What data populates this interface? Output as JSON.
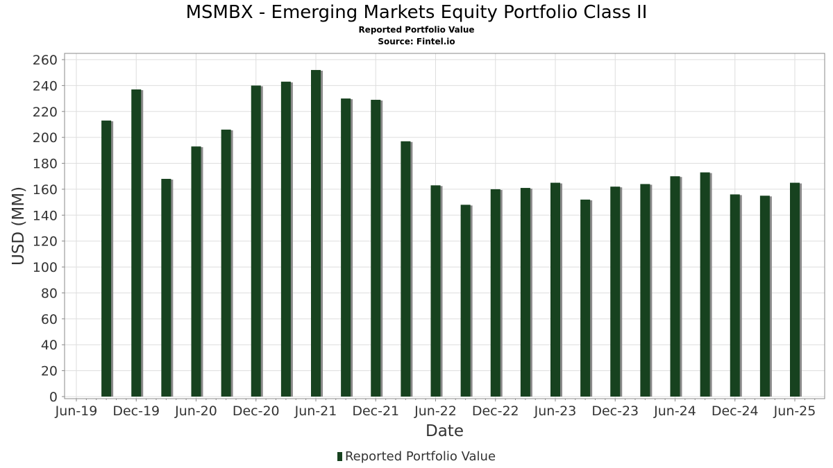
{
  "title": "MSMBX - Emerging Markets Equity Portfolio Class II",
  "subtitle": "Reported Portfolio Value",
  "source": "Source: Fintel.io",
  "colors": {
    "bar": "#17421f",
    "bar_shadow": "#8a8a8a",
    "grid": "#dddddd",
    "axis": "#888888",
    "text": "#333333"
  },
  "chart_data": {
    "type": "bar",
    "title": "MSMBX - Emerging Markets Equity Portfolio Class II",
    "subtitle": "Reported Portfolio Value",
    "xlabel": "Date",
    "ylabel": "USD (MM)",
    "ylim": [
      0,
      260
    ],
    "yticks": [
      0,
      20,
      40,
      60,
      80,
      100,
      120,
      140,
      160,
      180,
      200,
      220,
      240,
      260
    ],
    "xlim": [
      "2019-06",
      "2025-11"
    ],
    "xticks": [
      {
        "date": "2019-06",
        "label": "Jun-19"
      },
      {
        "date": "2019-12",
        "label": "Dec-19"
      },
      {
        "date": "2020-06",
        "label": "Jun-20"
      },
      {
        "date": "2020-12",
        "label": "Dec-20"
      },
      {
        "date": "2021-06",
        "label": "Jun-21"
      },
      {
        "date": "2021-12",
        "label": "Dec-21"
      },
      {
        "date": "2022-06",
        "label": "Jun-22"
      },
      {
        "date": "2022-12",
        "label": "Dec-22"
      },
      {
        "date": "2023-06",
        "label": "Jun-23"
      },
      {
        "date": "2023-12",
        "label": "Dec-23"
      },
      {
        "date": "2024-06",
        "label": "Jun-24"
      },
      {
        "date": "2024-12",
        "label": "Dec-24"
      },
      {
        "date": "2025-06",
        "label": "Jun-25"
      }
    ],
    "grid": true,
    "legend": "bottom-center",
    "series": [
      {
        "name": "Reported Portfolio Value",
        "points": [
          {
            "x": "2019-09",
            "y": 213
          },
          {
            "x": "2019-12",
            "y": 237
          },
          {
            "x": "2020-03",
            "y": 168
          },
          {
            "x": "2020-06",
            "y": 193
          },
          {
            "x": "2020-09",
            "y": 206
          },
          {
            "x": "2020-12",
            "y": 240
          },
          {
            "x": "2021-03",
            "y": 243
          },
          {
            "x": "2021-06",
            "y": 252
          },
          {
            "x": "2021-09",
            "y": 230
          },
          {
            "x": "2021-12",
            "y": 229
          },
          {
            "x": "2022-03",
            "y": 197
          },
          {
            "x": "2022-06",
            "y": 163
          },
          {
            "x": "2022-09",
            "y": 148
          },
          {
            "x": "2022-12",
            "y": 160
          },
          {
            "x": "2023-03",
            "y": 161
          },
          {
            "x": "2023-06",
            "y": 165
          },
          {
            "x": "2023-09",
            "y": 152
          },
          {
            "x": "2023-12",
            "y": 162
          },
          {
            "x": "2024-03",
            "y": 164
          },
          {
            "x": "2024-06",
            "y": 170
          },
          {
            "x": "2024-09",
            "y": 173
          },
          {
            "x": "2024-12",
            "y": 156
          },
          {
            "x": "2025-03",
            "y": 155
          },
          {
            "x": "2025-06",
            "y": 165
          }
        ]
      }
    ]
  }
}
